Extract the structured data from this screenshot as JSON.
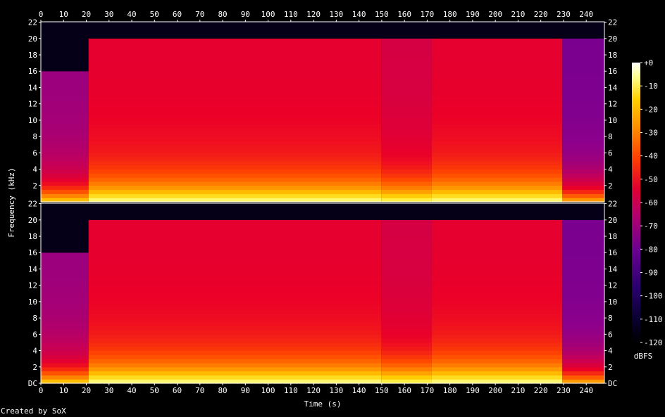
{
  "chart_data": {
    "type": "heatmap",
    "subtype": "spectrogram",
    "channels": [
      "top",
      "bottom"
    ],
    "xlabel": "Time (s)",
    "ylabel": "Frequency (kHz)",
    "x_ticks": [
      0,
      10,
      20,
      30,
      40,
      50,
      60,
      70,
      80,
      90,
      100,
      110,
      120,
      130,
      140,
      150,
      160,
      170,
      180,
      190,
      200,
      210,
      220,
      230,
      240
    ],
    "x_tick_labels": [
      "0",
      "10",
      "20",
      "30",
      "40",
      "50",
      "60",
      "70",
      "80",
      "90",
      "100",
      "110",
      "120",
      "130",
      "140",
      "150",
      "160",
      "170",
      "180",
      "190",
      "200",
      "210",
      "220",
      "230",
      "240"
    ],
    "xlim": [
      0,
      248
    ],
    "y_ticks": [
      0,
      2,
      4,
      6,
      8,
      10,
      12,
      14,
      16,
      18,
      20,
      22
    ],
    "y_tick_labels": [
      "DC",
      "2",
      "4",
      "6",
      "8",
      "10",
      "12",
      "14",
      "16",
      "18",
      "20",
      "22"
    ],
    "y_tick_labels_top_channel": [
      "2",
      "4",
      "6",
      "8",
      "10",
      "12",
      "14",
      "16",
      "18",
      "20",
      "22"
    ],
    "ylim": [
      0,
      22.05
    ],
    "colorbar": {
      "label": "dBFS",
      "ticks": [
        0,
        -10,
        -20,
        -30,
        -40,
        -50,
        -60,
        -70,
        -80,
        -90,
        -100,
        -110,
        -120
      ],
      "tick_labels": [
        "+0",
        "-10",
        "-20",
        "-30",
        "-40",
        "-50",
        "-60",
        "-70",
        "-80",
        "-90",
        "-100",
        "-110",
        "-120"
      ],
      "range": [
        -120,
        0
      ]
    },
    "segments": [
      {
        "start": 0,
        "end": 21,
        "lowpass_khz": 16,
        "level_db": -78
      },
      {
        "start": 21,
        "end": 150,
        "lowpass_khz": 20,
        "level_db": -62
      },
      {
        "start": 150,
        "end": 172,
        "lowpass_khz": 20,
        "level_db": -66
      },
      {
        "start": 172,
        "end": 229.5,
        "lowpass_khz": 20,
        "level_db": -62
      },
      {
        "start": 229.5,
        "end": 248,
        "lowpass_khz": 20,
        "level_db": -84
      }
    ]
  },
  "footer": {
    "credit": "Created by SoX"
  }
}
